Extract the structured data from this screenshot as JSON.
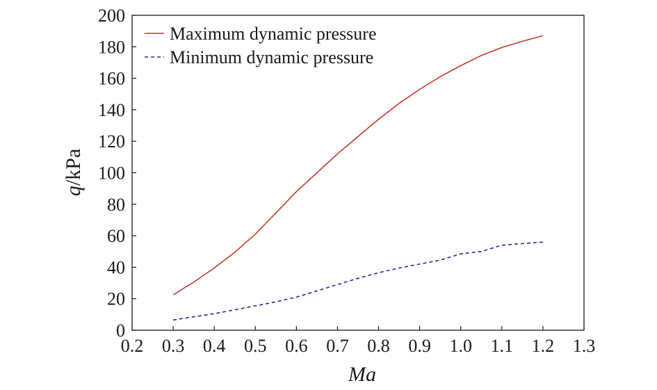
{
  "chart_data": {
    "type": "line",
    "title": "",
    "xlabel": "Ma",
    "ylabel_var": "q",
    "ylabel_unit": "/kPa",
    "xlim": [
      0.2,
      1.3
    ],
    "ylim": [
      0,
      200
    ],
    "xticks": [
      "0.2",
      "0.3",
      "0.4",
      "0.5",
      "0.6",
      "0.7",
      "0.8",
      "0.9",
      "1.0",
      "1.1",
      "1.2",
      "1.3"
    ],
    "yticks": [
      "0",
      "20",
      "40",
      "60",
      "80",
      "100",
      "120",
      "140",
      "160",
      "180",
      "200"
    ],
    "grid": false,
    "legend_position": "top-left",
    "series": [
      {
        "name": "Maximum dynamic pressure",
        "color": "#c0392b",
        "style": "solid",
        "x": [
          0.3,
          0.35,
          0.4,
          0.45,
          0.5,
          0.55,
          0.6,
          0.65,
          0.7,
          0.75,
          0.8,
          0.85,
          0.9,
          0.95,
          1.0,
          1.05,
          1.1,
          1.15,
          1.2
        ],
        "y": [
          22.5,
          30.5,
          39.5,
          49.5,
          61,
          74.5,
          88,
          100,
          112,
          123,
          134,
          144,
          153,
          161,
          168,
          174.5,
          179.5,
          183.5,
          187
        ]
      },
      {
        "name": "Minimum dynamic pressure",
        "color": "#1f2a9e",
        "style": "dashed",
        "x": [
          0.3,
          0.35,
          0.4,
          0.45,
          0.5,
          0.55,
          0.6,
          0.65,
          0.7,
          0.75,
          0.8,
          0.85,
          0.9,
          0.95,
          1.0,
          1.05,
          1.1,
          1.15,
          1.2
        ],
        "y": [
          6.5,
          8.5,
          10.5,
          13,
          15.5,
          18,
          21,
          25,
          29,
          33,
          36.5,
          39.5,
          42,
          44.5,
          48.5,
          50,
          54,
          55,
          56
        ]
      }
    ]
  }
}
